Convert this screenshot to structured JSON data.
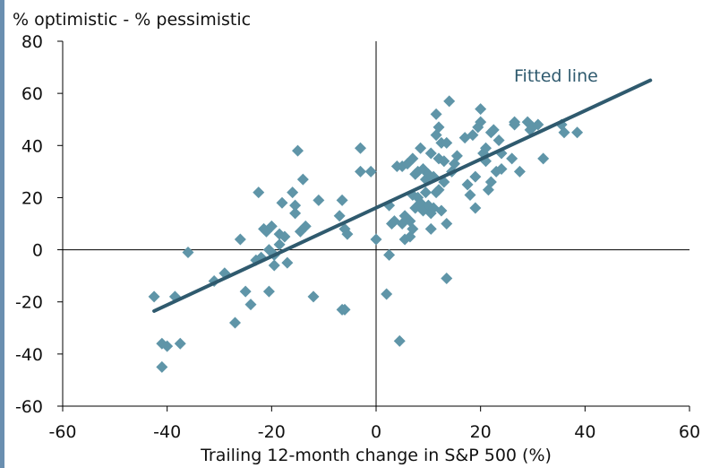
{
  "chart_data": {
    "type": "scatter",
    "title": "",
    "ylabel": "% optimistic - % pessimistic",
    "xlabel": "Trailing 12-month change in S&P 500 (%)",
    "xlim": [
      -60,
      60
    ],
    "ylim": [
      -60,
      80
    ],
    "xticks": [
      -60,
      -40,
      -20,
      0,
      20,
      40,
      60
    ],
    "yticks": [
      -60,
      -40,
      -20,
      0,
      20,
      40,
      60,
      80
    ],
    "grid": false,
    "marker_color": "#5f95a8",
    "line_color": "#2f5a6e",
    "fitted_line": {
      "label": "Fitted line",
      "x": [
        -42.5,
        52.5
      ],
      "y": [
        -23.5,
        65
      ]
    },
    "points": [
      {
        "x": -42.5,
        "y": -18
      },
      {
        "x": -41,
        "y": -45
      },
      {
        "x": -41,
        "y": -36
      },
      {
        "x": -40,
        "y": -37
      },
      {
        "x": -38.5,
        "y": -18
      },
      {
        "x": -37.5,
        "y": -36
      },
      {
        "x": -36,
        "y": -1
      },
      {
        "x": -31,
        "y": -12
      },
      {
        "x": -29,
        "y": -9
      },
      {
        "x": -27,
        "y": -28
      },
      {
        "x": -26,
        "y": 4
      },
      {
        "x": -25,
        "y": -16
      },
      {
        "x": -24,
        "y": -21
      },
      {
        "x": -23,
        "y": -4
      },
      {
        "x": -22.5,
        "y": 22
      },
      {
        "x": -22,
        "y": -3
      },
      {
        "x": -21.5,
        "y": 8
      },
      {
        "x": -21,
        "y": 7
      },
      {
        "x": -20.5,
        "y": -16
      },
      {
        "x": -20.5,
        "y": 0
      },
      {
        "x": -20,
        "y": 9
      },
      {
        "x": -19.5,
        "y": -2
      },
      {
        "x": -19.5,
        "y": -6
      },
      {
        "x": -18.5,
        "y": 2
      },
      {
        "x": -18.5,
        "y": 6
      },
      {
        "x": -18,
        "y": 18
      },
      {
        "x": -17.5,
        "y": 5
      },
      {
        "x": -17,
        "y": -5
      },
      {
        "x": -16,
        "y": 22
      },
      {
        "x": -15.5,
        "y": 14
      },
      {
        "x": -15.5,
        "y": 17
      },
      {
        "x": -15,
        "y": 38
      },
      {
        "x": -14.5,
        "y": 7
      },
      {
        "x": -14,
        "y": 27
      },
      {
        "x": -13.5,
        "y": 9
      },
      {
        "x": -12,
        "y": -18
      },
      {
        "x": -11,
        "y": 19
      },
      {
        "x": -7,
        "y": 13
      },
      {
        "x": -6.5,
        "y": 19
      },
      {
        "x": -6.5,
        "y": -23
      },
      {
        "x": -6,
        "y": -23
      },
      {
        "x": -6,
        "y": 8
      },
      {
        "x": -5.5,
        "y": 6
      },
      {
        "x": -3,
        "y": 39
      },
      {
        "x": -3,
        "y": 30
      },
      {
        "x": -1,
        "y": 30
      },
      {
        "x": 0,
        "y": 4
      },
      {
        "x": 2,
        "y": -17
      },
      {
        "x": 2.5,
        "y": -2
      },
      {
        "x": 2.5,
        "y": 17
      },
      {
        "x": 3,
        "y": 10
      },
      {
        "x": 3.5,
        "y": 11
      },
      {
        "x": 4,
        "y": 32
      },
      {
        "x": 4.5,
        "y": -35
      },
      {
        "x": 5,
        "y": 10
      },
      {
        "x": 5,
        "y": 32
      },
      {
        "x": 5.5,
        "y": 4
      },
      {
        "x": 5.5,
        "y": 13
      },
      {
        "x": 6,
        "y": 33
      },
      {
        "x": 6.5,
        "y": 5
      },
      {
        "x": 6.5,
        "y": 11
      },
      {
        "x": 7,
        "y": 8
      },
      {
        "x": 7,
        "y": 21
      },
      {
        "x": 7,
        "y": 35
      },
      {
        "x": 7.5,
        "y": 29
      },
      {
        "x": 7.5,
        "y": 16
      },
      {
        "x": 8,
        "y": 30
      },
      {
        "x": 8,
        "y": 20
      },
      {
        "x": 8.5,
        "y": 18
      },
      {
        "x": 8.5,
        "y": 39
      },
      {
        "x": 9,
        "y": 31
      },
      {
        "x": 9,
        "y": 15
      },
      {
        "x": 9.5,
        "y": 22
      },
      {
        "x": 9.5,
        "y": 27
      },
      {
        "x": 10,
        "y": 17
      },
      {
        "x": 10,
        "y": 29
      },
      {
        "x": 10.5,
        "y": 8
      },
      {
        "x": 10.5,
        "y": 14
      },
      {
        "x": 10.5,
        "y": 37
      },
      {
        "x": 11,
        "y": 16
      },
      {
        "x": 11,
        "y": 28
      },
      {
        "x": 11.5,
        "y": 52
      },
      {
        "x": 11.5,
        "y": 44
      },
      {
        "x": 11.5,
        "y": 22
      },
      {
        "x": 12,
        "y": 35
      },
      {
        "x": 12,
        "y": 47
      },
      {
        "x": 12,
        "y": 23
      },
      {
        "x": 12.5,
        "y": 41
      },
      {
        "x": 12.5,
        "y": 15
      },
      {
        "x": 13,
        "y": 26
      },
      {
        "x": 13,
        "y": 34
      },
      {
        "x": 13.5,
        "y": 10
      },
      {
        "x": 13.5,
        "y": 41
      },
      {
        "x": 13.5,
        "y": -11
      },
      {
        "x": 14,
        "y": 57
      },
      {
        "x": 14.5,
        "y": 30
      },
      {
        "x": 15,
        "y": 33
      },
      {
        "x": 15.5,
        "y": 36
      },
      {
        "x": 17,
        "y": 43
      },
      {
        "x": 17.5,
        "y": 25
      },
      {
        "x": 18,
        "y": 21
      },
      {
        "x": 18.5,
        "y": 44
      },
      {
        "x": 19,
        "y": 16
      },
      {
        "x": 19,
        "y": 28
      },
      {
        "x": 19.5,
        "y": 47
      },
      {
        "x": 20,
        "y": 54
      },
      {
        "x": 20,
        "y": 49
      },
      {
        "x": 20.5,
        "y": 37
      },
      {
        "x": 21,
        "y": 39
      },
      {
        "x": 21,
        "y": 34
      },
      {
        "x": 21.5,
        "y": 23
      },
      {
        "x": 22,
        "y": 45
      },
      {
        "x": 22,
        "y": 26
      },
      {
        "x": 22.5,
        "y": 46
      },
      {
        "x": 23,
        "y": 30
      },
      {
        "x": 23.5,
        "y": 42
      },
      {
        "x": 24,
        "y": 37
      },
      {
        "x": 24,
        "y": 31
      },
      {
        "x": 26,
        "y": 35
      },
      {
        "x": 26.5,
        "y": 48
      },
      {
        "x": 26.5,
        "y": 49
      },
      {
        "x": 27.5,
        "y": 30
      },
      {
        "x": 29,
        "y": 49
      },
      {
        "x": 29.5,
        "y": 46
      },
      {
        "x": 30,
        "y": 47
      },
      {
        "x": 31,
        "y": 48
      },
      {
        "x": 32,
        "y": 35
      },
      {
        "x": 35.5,
        "y": 48
      },
      {
        "x": 36,
        "y": 45
      },
      {
        "x": 38.5,
        "y": 45
      }
    ]
  }
}
